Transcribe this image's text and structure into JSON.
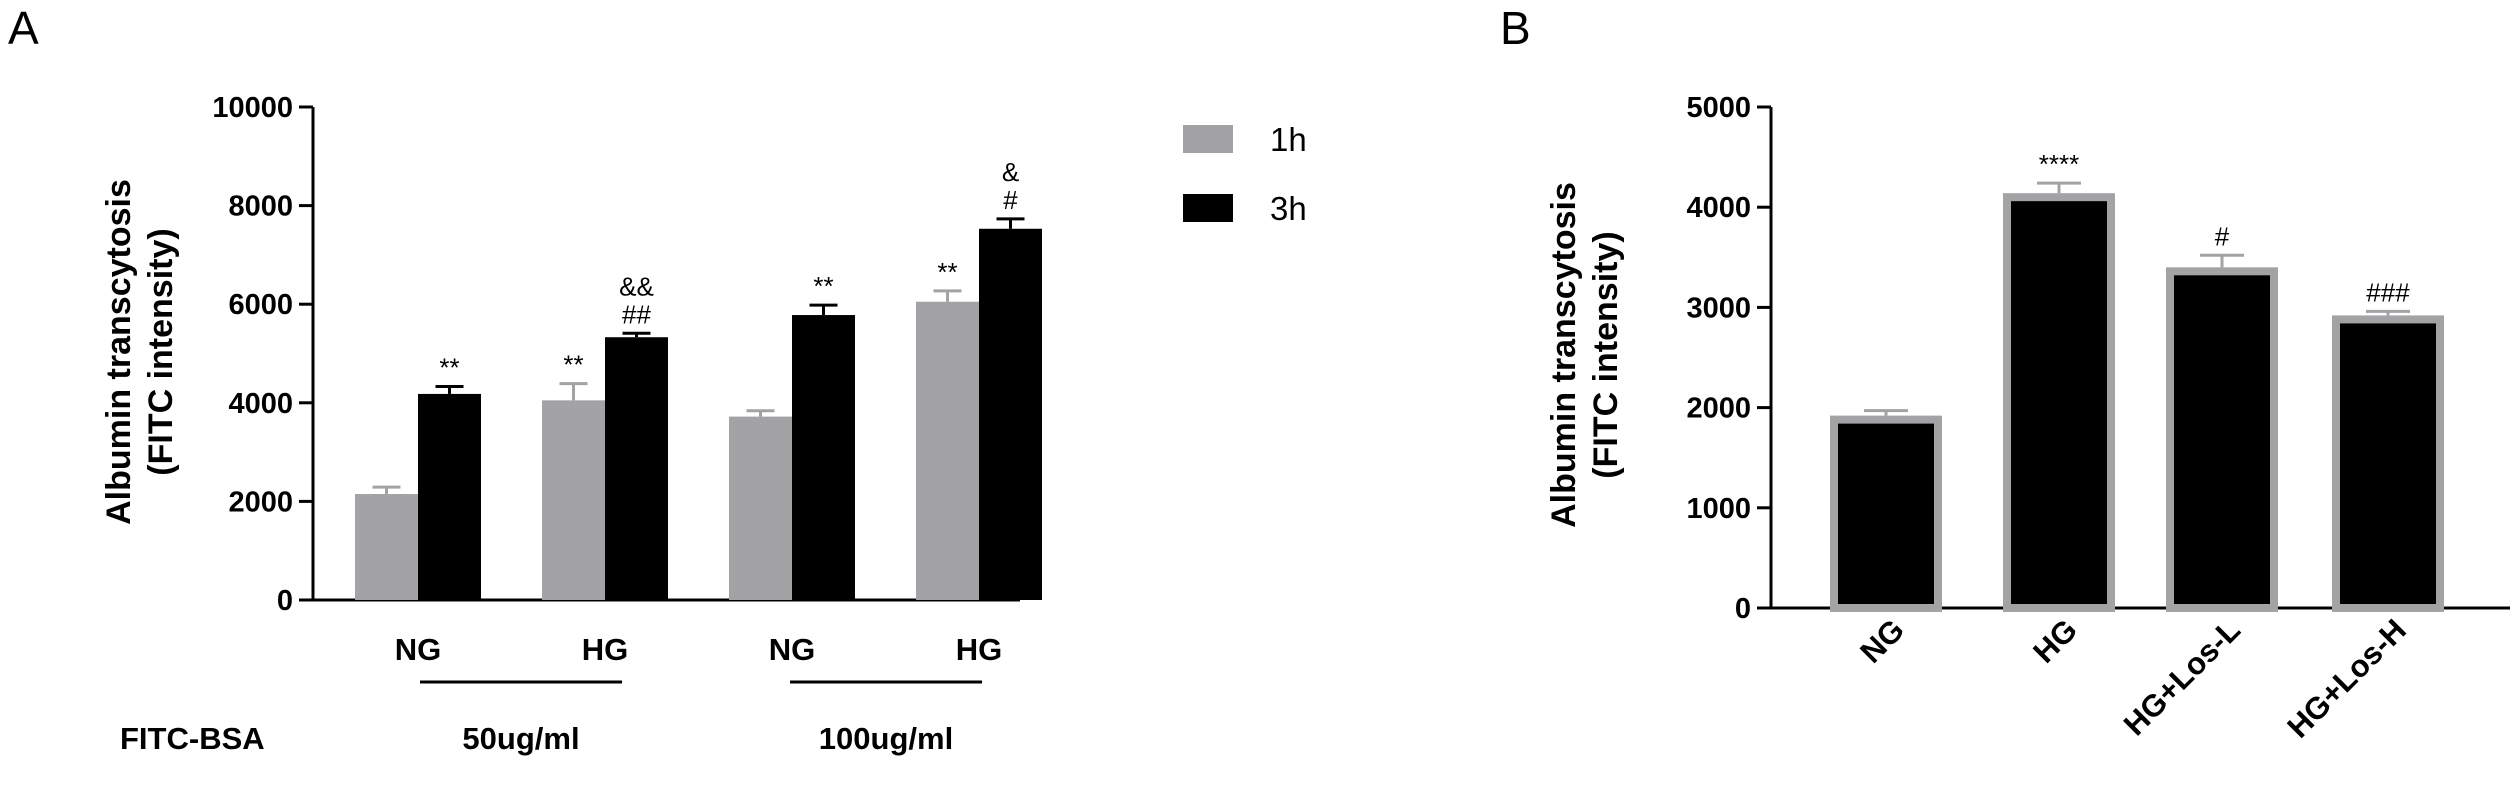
{
  "panels": [
    {
      "letter": "A",
      "ylabel_line1": "Albumin transcytosis",
      "ylabel_line2": "(FITC intensity)",
      "row_label": "FITC-BSA",
      "group_labels": [
        "50ug/ml",
        "100ug/ml"
      ]
    },
    {
      "letter": "B",
      "ylabel_line1": "Albumin transcytosis",
      "ylabel_line2": "(FITC intensity)"
    }
  ],
  "colors": {
    "h1": "#a3a3a6",
    "h3": "#000000",
    "bar_edge": "#a3a3a6"
  },
  "chart_data": [
    {
      "type": "bar",
      "title": "",
      "xlabel": "",
      "ylabel": "Albumin transcytosis (FITC intensity)",
      "ylim": [
        0,
        10000
      ],
      "yticks": [
        0,
        2000,
        4000,
        6000,
        8000,
        10000
      ],
      "categories": [
        "NG",
        "HG",
        "NG",
        "HG"
      ],
      "series": [
        {
          "name": "1h",
          "values": [
            2150,
            4050,
            3720,
            6050
          ],
          "errors": [
            140,
            340,
            120,
            220
          ],
          "annotations": [
            "",
            "**",
            "",
            "**"
          ]
        },
        {
          "name": "3h",
          "values": [
            4180,
            5330,
            5780,
            7530
          ],
          "errors": [
            150,
            80,
            200,
            200
          ],
          "annotations": [
            "**",
            "##\n&&",
            "**",
            "#\n&"
          ]
        }
      ],
      "legend": "right",
      "grid": false
    },
    {
      "type": "bar",
      "title": "",
      "xlabel": "",
      "ylabel": "Albumin transcytosis (FITC intensity)",
      "ylim": [
        0,
        5000
      ],
      "yticks": [
        0,
        1000,
        2000,
        3000,
        4000,
        5000
      ],
      "categories": [
        "NG",
        "HG",
        "HG+Los-L",
        "HG+Los-H"
      ],
      "values": [
        1920,
        4140,
        3400,
        2920
      ],
      "errors": [
        50,
        100,
        120,
        40
      ],
      "annotations": [
        "",
        "****",
        "#",
        "###"
      ],
      "grid": false
    }
  ]
}
